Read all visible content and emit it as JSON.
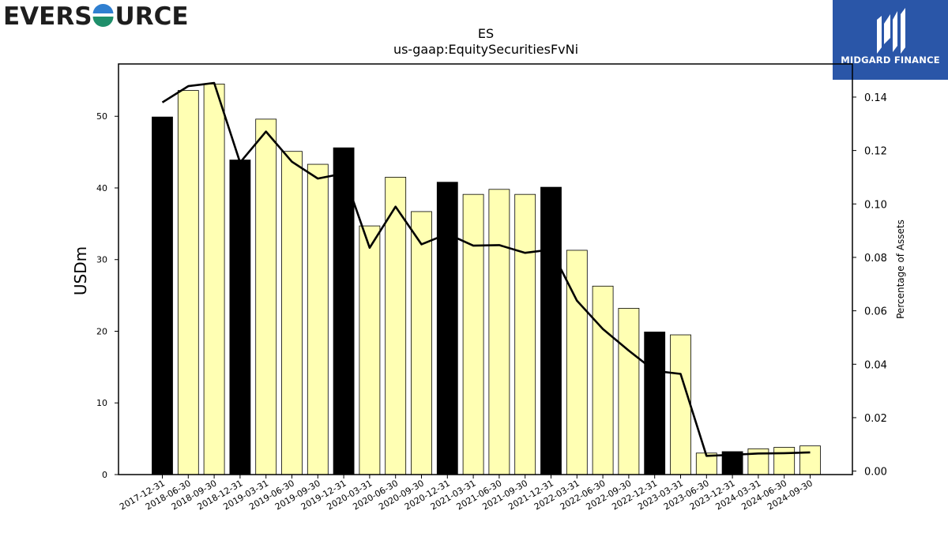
{
  "brand_left": {
    "name": "EVERSOURCE",
    "icon": "eversource-globe-icon",
    "colors": [
      "#1e1e1e",
      "#1f8f6b",
      "#2f7fd0"
    ]
  },
  "brand_right": {
    "name": "MIDGARD FINANCE",
    "icon": "midgard-logo-icon",
    "background": "#2a56a8"
  },
  "chart_data": {
    "type": "bar",
    "title": "ES",
    "subtitle": "us-gaap:EquitySecuritiesFvNi",
    "ylabel": "USDm",
    "y2label": "Percentage of Assets",
    "ylim": [
      0,
      57.3
    ],
    "y2lim": [
      -0.0013,
      0.1524
    ],
    "yticks": [
      0,
      10,
      20,
      30,
      40,
      50
    ],
    "y2ticks": [
      0.0,
      0.02,
      0.04,
      0.06,
      0.08,
      0.1,
      0.12,
      0.14
    ],
    "categories": [
      "2017-12-31",
      "2018-06-30",
      "2018-09-30",
      "2018-12-31",
      "2019-03-31",
      "2019-06-30",
      "2019-09-30",
      "2019-12-31",
      "2020-03-31",
      "2020-06-30",
      "2020-09-30",
      "2020-12-31",
      "2021-03-31",
      "2021-06-30",
      "2021-09-30",
      "2021-12-31",
      "2022-03-31",
      "2022-06-30",
      "2022-09-30",
      "2022-12-31",
      "2023-03-31",
      "2023-06-30",
      "2023-12-31",
      "2024-03-31",
      "2024-06-30",
      "2024-09-30"
    ],
    "series": [
      {
        "type": "bar",
        "values": [
          49.9,
          53.6,
          54.5,
          43.9,
          49.6,
          45.1,
          43.3,
          45.6,
          34.7,
          41.5,
          36.7,
          40.8,
          39.1,
          39.8,
          39.1,
          40.1,
          31.3,
          26.3,
          23.2,
          19.9,
          19.5,
          3.0,
          3.2,
          3.6,
          3.8,
          4.0
        ],
        "highlight": [
          true,
          false,
          false,
          true,
          false,
          false,
          false,
          true,
          false,
          false,
          false,
          true,
          false,
          false,
          false,
          true,
          false,
          false,
          false,
          true,
          false,
          false,
          true,
          false,
          false,
          false
        ],
        "color": "#ffffb3",
        "highlight_color": "#000000"
      },
      {
        "type": "line",
        "axis": "right",
        "values": [
          0.138,
          0.1441,
          0.1453,
          0.1155,
          0.1271,
          0.1158,
          0.1095,
          0.1114,
          0.0836,
          0.099,
          0.0849,
          0.0888,
          0.0844,
          0.0846,
          0.0817,
          0.0829,
          0.0638,
          0.0532,
          0.0451,
          0.0375,
          0.0364,
          0.0057,
          0.0061,
          0.0066,
          0.0067,
          0.007
        ],
        "color": "#000000"
      }
    ],
    "grid": false,
    "legend": "none"
  }
}
